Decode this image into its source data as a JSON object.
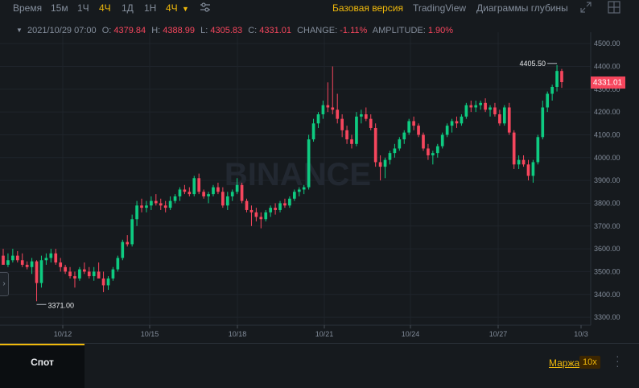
{
  "toolbar": {
    "time_label": "Время",
    "intervals": [
      "15м",
      "1Ч",
      "4Ч",
      "1Д",
      "1Н"
    ],
    "active_interval": "4Ч",
    "dropdown_label": "4Ч",
    "views": [
      "Базовая версия",
      "TradingView",
      "Диаграммы глубины"
    ],
    "active_view": "Базовая версия"
  },
  "ohlc": {
    "date": "2021/10/29 07:00",
    "o_label": "O:",
    "o": "4379.84",
    "h_label": "H:",
    "h": "4388.99",
    "l_label": "L:",
    "l": "4305.83",
    "c_label": "C:",
    "c": "4331.01",
    "change_label": "CHANGE:",
    "change": "-1.11%",
    "amplitude_label": "AMPLITUDE:",
    "amplitude": "1.90%"
  },
  "chart_data": {
    "type": "candlestick",
    "watermark": "BINANCE",
    "y_ticks": [
      3300,
      3400,
      3500,
      3600,
      3700,
      3800,
      3900,
      4000,
      4100,
      4200,
      4300,
      4400,
      4500
    ],
    "y_tick_labels": [
      "3300.00",
      "3400.00",
      "3500.00",
      "3600.00",
      "3700.00",
      "3800.00",
      "3900.00",
      "4000.00",
      "4100.00",
      "4200.00",
      "4300.00",
      "4400.00",
      "4500.00"
    ],
    "ylim": [
      3265,
      4550
    ],
    "x_ticks": [
      "10/12",
      "10/15",
      "10/18",
      "10/21",
      "10/24",
      "10/27",
      "10/3"
    ],
    "high_marker": "4405.50",
    "low_marker": "3371.00",
    "last_price": "4331.01",
    "up_color": "#0ecb81",
    "down_color": "#f6465d",
    "candles": [
      [
        3570,
        3600,
        3540,
        3530
      ],
      [
        3530,
        3580,
        3520,
        3550
      ],
      [
        3550,
        3600,
        3540,
        3570
      ],
      [
        3570,
        3590,
        3540,
        3550
      ],
      [
        3550,
        3580,
        3520,
        3530
      ],
      [
        3530,
        3545,
        3510,
        3520
      ],
      [
        3520,
        3560,
        3490,
        3545
      ],
      [
        3545,
        3550,
        3370,
        3450
      ],
      [
        3450,
        3570,
        3430,
        3550
      ],
      [
        3550,
        3580,
        3530,
        3560
      ],
      [
        3560,
        3600,
        3540,
        3580
      ],
      [
        3580,
        3600,
        3530,
        3540
      ],
      [
        3540,
        3560,
        3500,
        3520
      ],
      [
        3520,
        3530,
        3490,
        3500
      ],
      [
        3500,
        3520,
        3470,
        3480
      ],
      [
        3480,
        3500,
        3430,
        3470
      ],
      [
        3470,
        3520,
        3460,
        3510
      ],
      [
        3510,
        3540,
        3490,
        3500
      ],
      [
        3500,
        3520,
        3470,
        3480
      ],
      [
        3480,
        3520,
        3460,
        3500
      ],
      [
        3500,
        3540,
        3480,
        3470
      ],
      [
        3470,
        3500,
        3410,
        3440
      ],
      [
        3440,
        3480,
        3420,
        3470
      ],
      [
        3470,
        3520,
        3460,
        3510
      ],
      [
        3510,
        3570,
        3500,
        3560
      ],
      [
        3560,
        3640,
        3550,
        3630
      ],
      [
        3630,
        3660,
        3610,
        3620
      ],
      [
        3620,
        3750,
        3610,
        3730
      ],
      [
        3730,
        3810,
        3700,
        3790
      ],
      [
        3790,
        3820,
        3760,
        3780
      ],
      [
        3780,
        3810,
        3760,
        3790
      ],
      [
        3790,
        3830,
        3770,
        3810
      ],
      [
        3810,
        3840,
        3790,
        3800
      ],
      [
        3800,
        3820,
        3770,
        3790
      ],
      [
        3790,
        3810,
        3760,
        3780
      ],
      [
        3780,
        3830,
        3770,
        3810
      ],
      [
        3810,
        3840,
        3800,
        3830
      ],
      [
        3830,
        3870,
        3810,
        3860
      ],
      [
        3860,
        3880,
        3840,
        3850
      ],
      [
        3850,
        3870,
        3830,
        3840
      ],
      [
        3840,
        3920,
        3830,
        3910
      ],
      [
        3910,
        3930,
        3840,
        3850
      ],
      [
        3850,
        3860,
        3820,
        3830
      ],
      [
        3830,
        3850,
        3800,
        3840
      ],
      [
        3840,
        3880,
        3830,
        3870
      ],
      [
        3870,
        3890,
        3840,
        3850
      ],
      [
        3850,
        3870,
        3780,
        3790
      ],
      [
        3790,
        3850,
        3770,
        3830
      ],
      [
        3830,
        3860,
        3810,
        3850
      ],
      [
        3850,
        3910,
        3840,
        3880
      ],
      [
        3880,
        3890,
        3800,
        3810
      ],
      [
        3810,
        3820,
        3760,
        3770
      ],
      [
        3770,
        3790,
        3700,
        3760
      ],
      [
        3760,
        3780,
        3720,
        3740
      ],
      [
        3740,
        3760,
        3690,
        3730
      ],
      [
        3730,
        3770,
        3720,
        3760
      ],
      [
        3760,
        3790,
        3740,
        3780
      ],
      [
        3780,
        3800,
        3750,
        3770
      ],
      [
        3770,
        3810,
        3760,
        3800
      ],
      [
        3800,
        3820,
        3780,
        3790
      ],
      [
        3790,
        3830,
        3780,
        3820
      ],
      [
        3820,
        3860,
        3810,
        3850
      ],
      [
        3850,
        3870,
        3830,
        3860
      ],
      [
        3860,
        3880,
        3840,
        3870
      ],
      [
        3870,
        4100,
        3860,
        4080
      ],
      [
        4080,
        4170,
        4070,
        4150
      ],
      [
        4150,
        4200,
        4130,
        4190
      ],
      [
        4190,
        4250,
        4170,
        4230
      ],
      [
        4230,
        4330,
        4200,
        4220
      ],
      [
        4220,
        4400,
        4190,
        4210
      ],
      [
        4210,
        4280,
        4150,
        4170
      ],
      [
        4170,
        4190,
        4090,
        4120
      ],
      [
        4120,
        4140,
        4060,
        4080
      ],
      [
        4080,
        4100,
        4040,
        4060
      ],
      [
        4060,
        4200,
        4050,
        4180
      ],
      [
        4180,
        4210,
        4150,
        4190
      ],
      [
        4190,
        4220,
        4160,
        4170
      ],
      [
        4170,
        4190,
        4120,
        4130
      ],
      [
        4130,
        4150,
        3960,
        3980
      ],
      [
        3980,
        4010,
        3900,
        3960
      ],
      [
        3960,
        4000,
        3910,
        3990
      ],
      [
        3990,
        4030,
        3970,
        4020
      ],
      [
        4020,
        4060,
        4000,
        4040
      ],
      [
        4040,
        4090,
        4030,
        4080
      ],
      [
        4080,
        4120,
        4060,
        4110
      ],
      [
        4110,
        4170,
        4100,
        4160
      ],
      [
        4160,
        4180,
        4120,
        4140
      ],
      [
        4140,
        4150,
        4090,
        4100
      ],
      [
        4100,
        4110,
        4030,
        4040
      ],
      [
        4040,
        4060,
        3990,
        4010
      ],
      [
        4010,
        4030,
        3970,
        4020
      ],
      [
        4020,
        4060,
        4000,
        4050
      ],
      [
        4050,
        4110,
        4040,
        4100
      ],
      [
        4100,
        4150,
        4090,
        4140
      ],
      [
        4140,
        4170,
        4110,
        4160
      ],
      [
        4160,
        4180,
        4130,
        4150
      ],
      [
        4150,
        4190,
        4140,
        4180
      ],
      [
        4180,
        4240,
        4170,
        4230
      ],
      [
        4230,
        4250,
        4200,
        4220
      ],
      [
        4220,
        4250,
        4200,
        4230
      ],
      [
        4230,
        4250,
        4210,
        4240
      ],
      [
        4240,
        4260,
        4200,
        4210
      ],
      [
        4210,
        4230,
        4180,
        4220
      ],
      [
        4220,
        4240,
        4180,
        4190
      ],
      [
        4190,
        4210,
        4140,
        4150
      ],
      [
        4150,
        4230,
        4140,
        4220
      ],
      [
        4220,
        4240,
        4100,
        4110
      ],
      [
        4110,
        4120,
        3950,
        3970
      ],
      [
        3970,
        4010,
        3950,
        3990
      ],
      [
        3990,
        4010,
        3960,
        3970
      ],
      [
        3970,
        3990,
        3900,
        3920
      ],
      [
        3920,
        3990,
        3890,
        3980
      ],
      [
        3980,
        4100,
        3970,
        4090
      ],
      [
        4090,
        4250,
        4080,
        4220
      ],
      [
        4220,
        4290,
        4200,
        4280
      ],
      [
        4280,
        4320,
        4250,
        4310
      ],
      [
        4310,
        4406,
        4290,
        4380
      ],
      [
        4379.84,
        4388.99,
        4305.83,
        4331.01
      ]
    ]
  },
  "bottom": {
    "spot_tab": "Спот",
    "margin_link": "Маржа",
    "leverage": "10x"
  }
}
